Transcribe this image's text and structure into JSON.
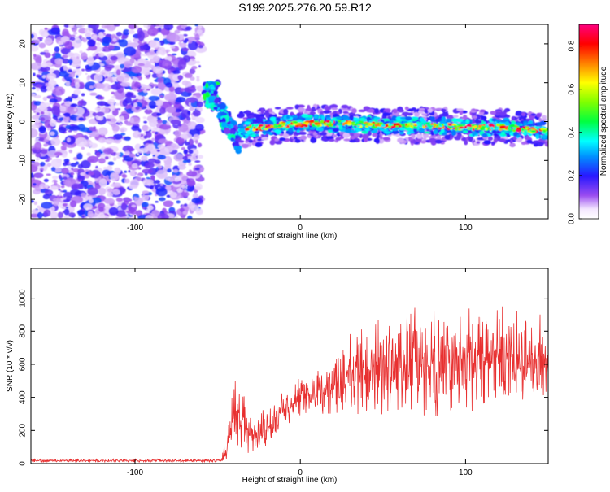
{
  "title": "S199.2025.276.20.59.R12",
  "chart_data": [
    {
      "type": "heatmap",
      "xlabel": "Height of straight line (km)",
      "ylabel": "Frequency (Hz)",
      "xlim": [
        -163,
        150
      ],
      "ylim": [
        -25,
        25
      ],
      "xticks": [
        -100,
        0,
        100
      ],
      "xtick_labels": [
        "-100",
        "0",
        "100"
      ],
      "yticks": [
        -20,
        -10,
        0,
        10,
        20
      ],
      "ytick_labels": [
        "-20",
        "-10",
        "0",
        "10",
        "20"
      ],
      "colorbar": {
        "label": "Normalized spectral amplitude",
        "range": [
          0,
          0.9
        ],
        "ticks": [
          0.0,
          0.2,
          0.4,
          0.6,
          0.8
        ],
        "tick_labels": [
          "0.0",
          "0.2",
          "0.4",
          "0.6",
          "0.8"
        ]
      },
      "features": {
        "noise_region_x": [
          -163,
          -60
        ],
        "noise_amplitude_range": [
          0.05,
          0.25
        ],
        "blob": {
          "x": -54,
          "y": 7,
          "amplitude": 0.35
        },
        "transition": {
          "x": [
            -55,
            -37
          ],
          "y": [
            7,
            -5
          ]
        },
        "signal_line": {
          "x": [
            -37,
            -25,
            0,
            25,
            50,
            75,
            100,
            125,
            150
          ],
          "y": [
            -2,
            -1.5,
            -0.5,
            -0.5,
            -1,
            -1,
            -1.5,
            -1.5,
            -2.5
          ],
          "peak_amplitude": 0.9
        }
      }
    },
    {
      "type": "line",
      "xlabel": "Height of straight line (km)",
      "ylabel": "SNR (10 * v/v)",
      "xlim": [
        -163,
        150
      ],
      "ylim": [
        0,
        1180
      ],
      "xticks": [
        -100,
        0,
        100
      ],
      "xtick_labels": [
        "-100",
        "0",
        "100"
      ],
      "yticks": [
        0,
        200,
        400,
        600,
        800,
        1000
      ],
      "ytick_labels": [
        "0",
        "200",
        "400",
        "600",
        "800",
        "1000"
      ],
      "series": [
        {
          "name": "SNR",
          "color": "#e83030",
          "profile": {
            "x": [
              -163,
              -48,
              -45,
              -40,
              -35,
              -30,
              -25,
              -20,
              -15,
              -10,
              -5,
              0,
              10,
              20,
              25,
              40,
              60,
              80,
              100,
              120,
              150
            ],
            "y": [
              18,
              18,
              80,
              320,
              250,
              160,
              170,
              200,
              270,
              330,
              350,
              390,
              420,
              460,
              520,
              560,
              590,
              610,
              620,
              620,
              630
            ],
            "spread": [
              10,
              10,
              80,
              220,
              220,
              140,
              150,
              150,
              120,
              120,
              130,
              140,
              160,
              200,
              260,
              320,
              360,
              380,
              370,
              350,
              300
            ]
          }
        }
      ]
    }
  ]
}
